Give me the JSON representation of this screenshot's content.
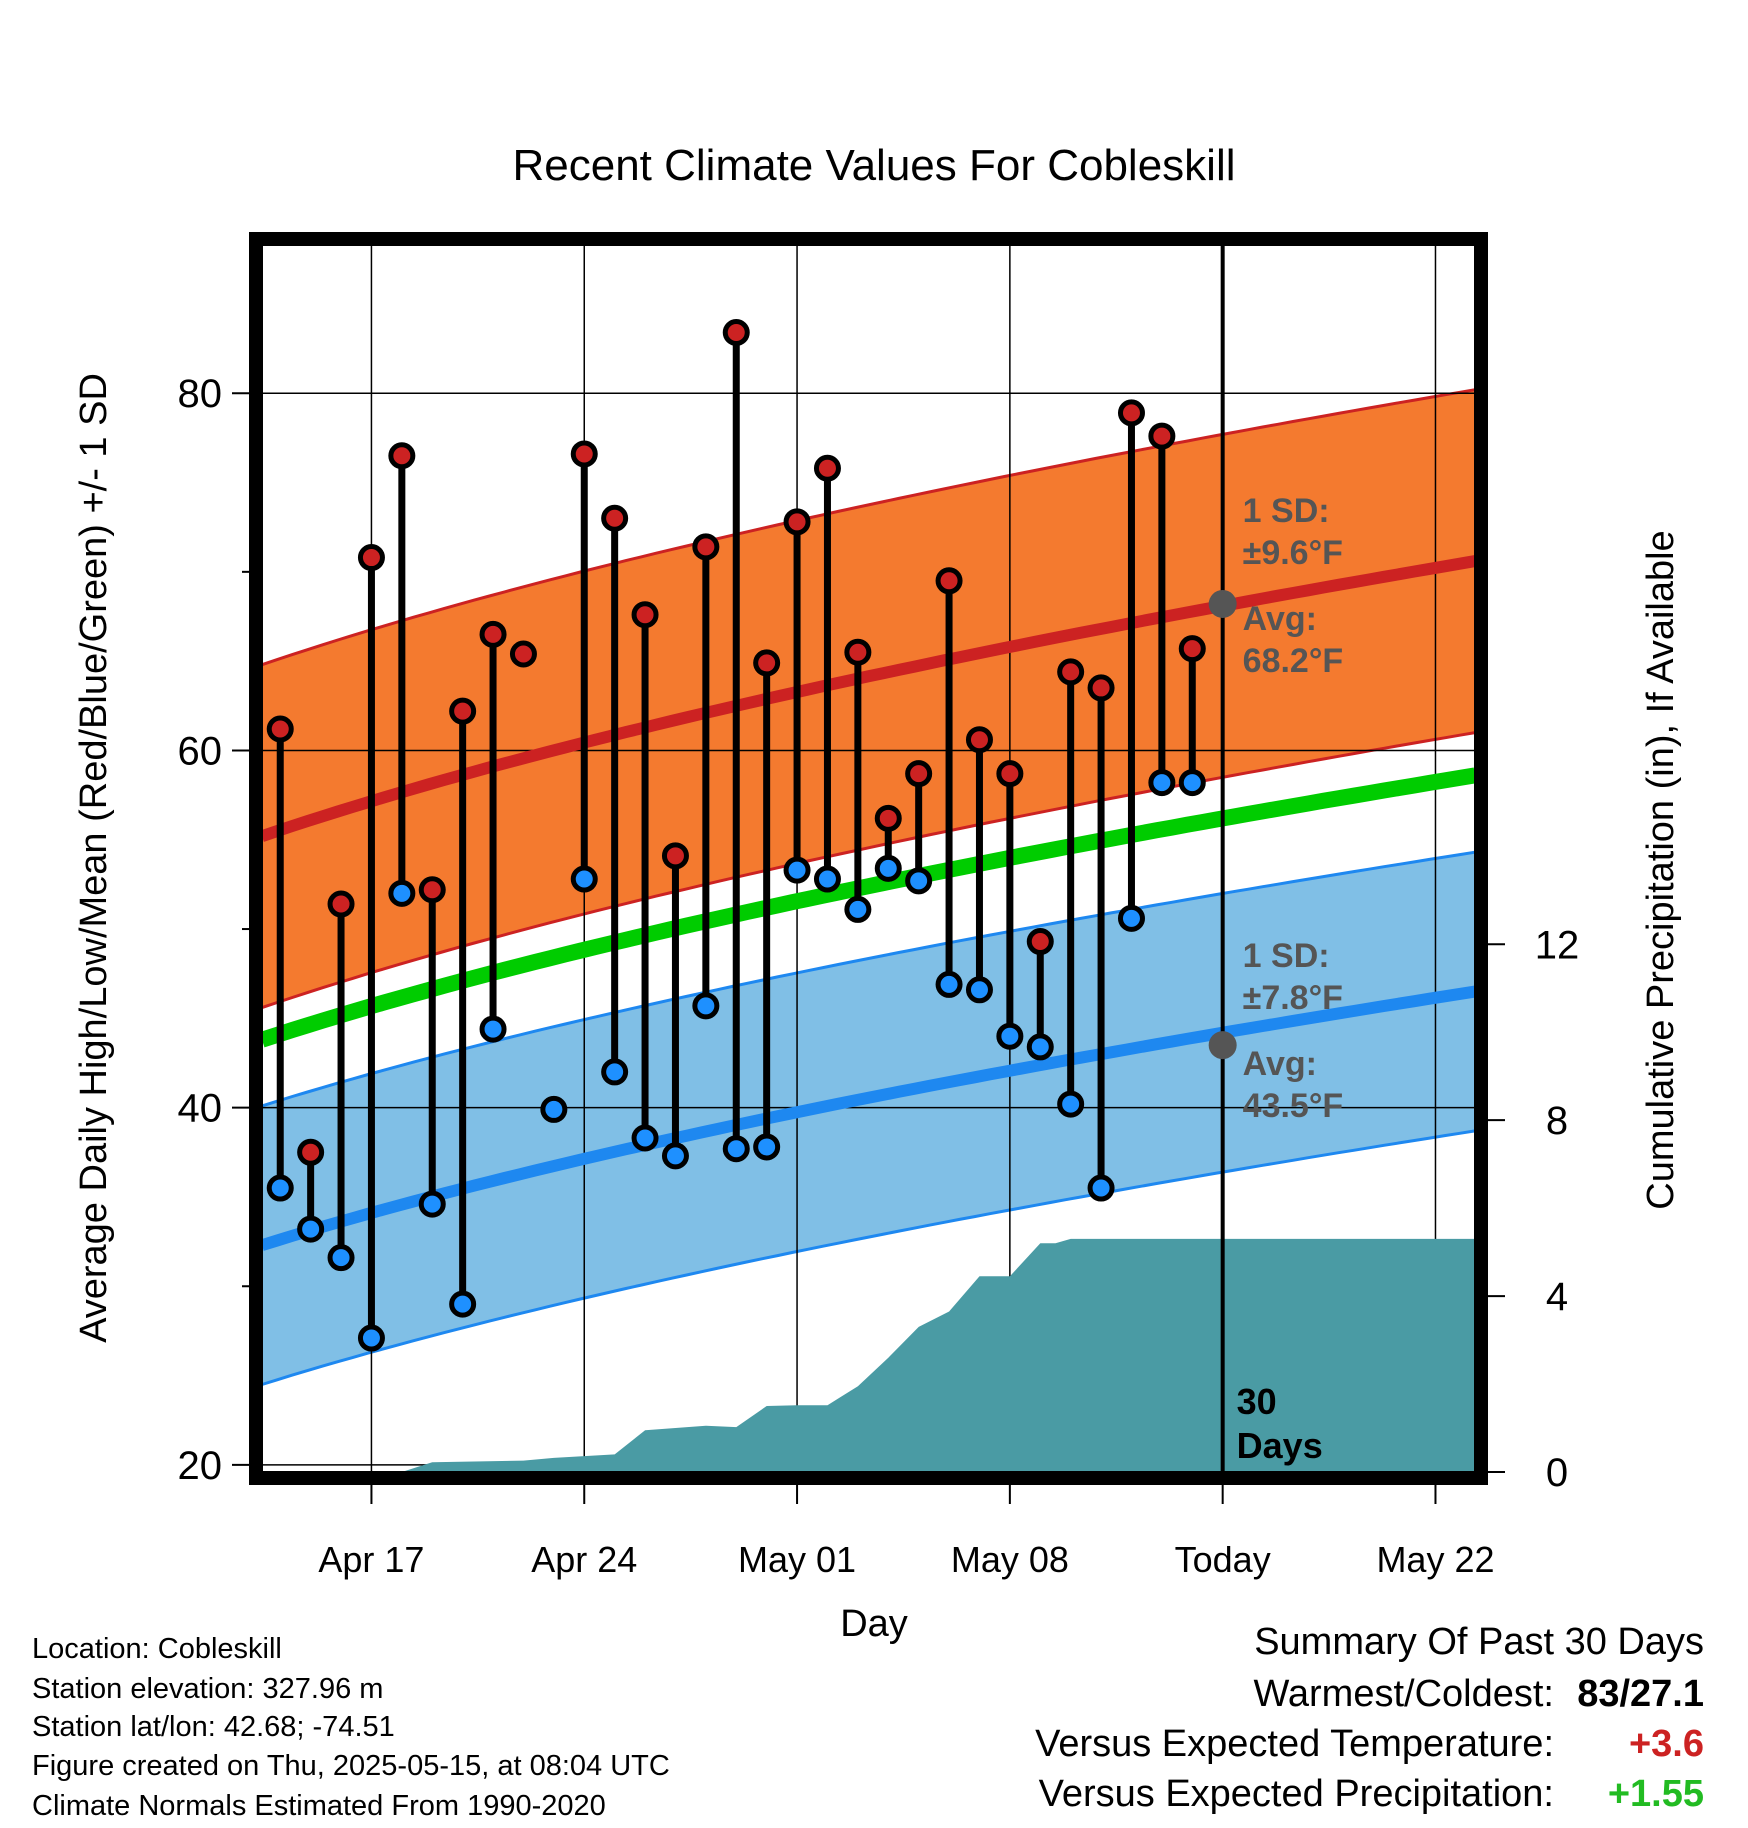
{
  "chart_data": {
    "type": "line",
    "title": "Recent Climate Values For Cobleskill",
    "xlabel": "Day",
    "ylabel_left": "Average Daily High/Low/Mean (Red/Blue/Green) +/- 1 SD",
    "ylabel_right": "Cumulative Precipitation (in), If Available",
    "ylim_left": [
      19.6,
      88.3
    ],
    "ylim_right": [
      0,
      27.9
    ],
    "xlim_days_from_apr14": [
      -0.6,
      39.3
    ],
    "x_ticks": [
      {
        "label": "Apr 17",
        "day": 3
      },
      {
        "label": "Apr 24",
        "day": 10
      },
      {
        "label": "May 01",
        "day": 17
      },
      {
        "label": "May 08",
        "day": 24
      },
      {
        "label": "Today",
        "day": 31
      },
      {
        "label": "May 22",
        "day": 38
      }
    ],
    "y_ticks_left": [
      20,
      40,
      60,
      80
    ],
    "y_minor_left": [
      30,
      50,
      70
    ],
    "y_ticks_right": [
      0,
      4,
      8,
      12
    ],
    "today_day": 31,
    "days_label": [
      "30",
      "Days"
    ],
    "normals": {
      "high_mean": [
        55.2,
        70.6
      ],
      "high_sd": 9.6,
      "low_mean": [
        32.3,
        46.5
      ],
      "low_sd": 7.8,
      "mean": [
        43.8,
        58.6
      ]
    },
    "observations": {
      "dates": [
        "Apr 14",
        "Apr 15",
        "Apr 16",
        "Apr 17",
        "Apr 18",
        "Apr 19",
        "Apr 20",
        "Apr 21",
        "Apr 22",
        "Apr 23",
        "Apr 24",
        "Apr 25",
        "Apr 26",
        "Apr 27",
        "Apr 28",
        "Apr 29",
        "Apr 30",
        "May 01",
        "May 02",
        "May 03",
        "May 04",
        "May 05",
        "May 06",
        "May 07",
        "May 08",
        "May 09",
        "May 10",
        "May 11",
        "May 12",
        "May 13",
        "May 14"
      ],
      "highs": [
        61.2,
        37.5,
        51.4,
        70.8,
        76.5,
        52.2,
        62.2,
        66.5,
        65.4,
        35.5,
        76.6,
        73.0,
        67.6,
        54.1,
        71.4,
        83.4,
        64.9,
        72.8,
        75.8,
        65.5,
        56.2,
        58.7,
        69.5,
        60.6,
        58.7,
        49.3,
        64.4,
        63.5,
        78.9,
        77.6,
        65.7
      ],
      "lows": [
        35.5,
        33.2,
        31.6,
        27.1,
        52.0,
        34.6,
        29.0,
        44.4,
        35.5,
        39.9,
        52.8,
        42.0,
        38.3,
        37.3,
        45.7,
        37.7,
        37.8,
        53.3,
        52.8,
        51.1,
        53.4,
        52.7,
        46.9,
        46.6,
        44.0,
        43.4,
        40.2,
        35.5,
        50.6,
        58.2,
        58.2
      ],
      "has_low": [
        true,
        true,
        true,
        true,
        true,
        true,
        true,
        true,
        false,
        true,
        true,
        true,
        true,
        true,
        true,
        true,
        true,
        true,
        true,
        true,
        true,
        true,
        true,
        true,
        true,
        true,
        true,
        true,
        true,
        true,
        true
      ],
      "has_high": [
        true,
        true,
        true,
        true,
        true,
        true,
        true,
        true,
        true,
        false,
        true,
        true,
        true,
        true,
        true,
        true,
        true,
        true,
        true,
        true,
        true,
        true,
        true,
        true,
        true,
        true,
        true,
        true,
        true,
        true,
        true
      ]
    },
    "precip_cumulative": [
      [
        -0.6,
        0
      ],
      [
        4.0,
        0
      ],
      [
        5.0,
        0.22
      ],
      [
        8.0,
        0.26
      ],
      [
        9.0,
        0.32
      ],
      [
        11.0,
        0.4
      ],
      [
        12.0,
        0.95
      ],
      [
        13.0,
        1.0
      ],
      [
        14.0,
        1.05
      ],
      [
        15.0,
        1.02
      ],
      [
        16.0,
        1.5
      ],
      [
        17.0,
        1.52
      ],
      [
        18.0,
        1.52
      ],
      [
        19.0,
        1.95
      ],
      [
        20.0,
        2.6
      ],
      [
        21.0,
        3.3
      ],
      [
        22.0,
        3.65
      ],
      [
        23.0,
        4.45
      ],
      [
        24.0,
        4.45
      ],
      [
        25.0,
        5.2
      ],
      [
        25.5,
        5.2
      ],
      [
        26.0,
        5.3
      ],
      [
        28.0,
        5.3
      ],
      [
        31.0,
        5.3
      ],
      [
        39.3,
        5.3
      ]
    ],
    "annotations": {
      "high": {
        "sd_label": "1 SD:",
        "sd_value": "±9.6°F",
        "avg_label": "Avg:",
        "avg_value": "68.2°F",
        "avg": 68.2
      },
      "low": {
        "sd_label": "1 SD:",
        "sd_value": "±7.8°F",
        "avg_label": "Avg:",
        "avg_value": "43.5°F",
        "avg": 43.5
      }
    },
    "colors": {
      "high_band": "#f47a2f",
      "high_line": "#cc2222",
      "low_band": "#80bfe6",
      "low_line": "#1e88f0",
      "mean_line": "#00cc00",
      "precip": "#4a9ba4",
      "high_dot": "#cc2222",
      "low_dot": "#1e90ff",
      "annotation_text": "#555555"
    }
  },
  "footer": {
    "location": "Location: Cobleskill",
    "elevation": "Station elevation: 327.96 m",
    "latlon": "Station lat/lon: 42.68; -74.51",
    "created": "Figure created on Thu, 2025-05-15, at 08:04 UTC",
    "normals": "Climate Normals Estimated From 1990-2020"
  },
  "summary": {
    "title": "Summary Of Past 30 Days",
    "warmest_label": "Warmest/Coldest:",
    "warmest_value": "83/27.1",
    "temp_label": "Versus Expected Temperature:",
    "temp_value": "+3.6",
    "temp_color": "#cc2222",
    "precip_label": "Versus Expected Precipitation:",
    "precip_value": "+1.55",
    "precip_color": "#22bb22"
  }
}
